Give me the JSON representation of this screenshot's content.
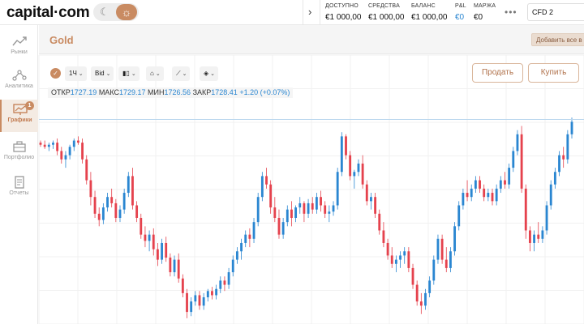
{
  "header": {
    "logo": "capital·com",
    "account": [
      {
        "label": "ДОСТУПНО",
        "value": "€1 000,00",
        "accent": false
      },
      {
        "label": "СРЕДСТВА",
        "value": "€1 000,00",
        "accent": false
      },
      {
        "label": "БАЛАНС",
        "value": "€1 000,00",
        "accent": false
      },
      {
        "label": "P&L",
        "value": "€0",
        "accent": true
      },
      {
        "label": "МАРЖА",
        "value": "€0",
        "accent": false
      }
    ],
    "account_type": "CFD 2"
  },
  "sidebar": {
    "items": [
      {
        "label": "Рынки",
        "icon": "trend-line-icon",
        "active": false
      },
      {
        "label": "Аналитика",
        "icon": "network-icon",
        "active": false
      },
      {
        "label": "Графики",
        "icon": "chart-monitor-icon",
        "active": true,
        "badge": "1"
      },
      {
        "label": "Портфолио",
        "icon": "briefcase-icon",
        "active": false
      },
      {
        "label": "Отчеты",
        "icon": "document-icon",
        "active": false
      }
    ]
  },
  "instrument": {
    "title": "Gold",
    "add_label": "Добавить все в избранное"
  },
  "toolbar": {
    "interval": "1Ч",
    "price_type": "Bid"
  },
  "trade": {
    "sell_label": "Продать",
    "buy_label": "Купить"
  },
  "ohlc": {
    "open_label": "ОТКР",
    "open": "1727.19",
    "high_label": "МАКС",
    "high": "1729.17",
    "low_label": "МИН",
    "low": "1726.56",
    "close_label": "ЗАКР",
    "close": "1728.41",
    "change": "+1.20 (+0.07%)"
  },
  "colors": {
    "accent": "#c98b62",
    "up": "#2a86d1",
    "down": "#e5424d"
  },
  "chart_data": {
    "type": "candlestick",
    "title": "",
    "xlabel": "",
    "ylabel": "",
    "grid": true,
    "ylim": [
      0,
      100
    ],
    "series": [
      {
        "values": [
          [
            86,
            87,
            84,
            85
          ],
          [
            85,
            87,
            83,
            84
          ],
          [
            84,
            86,
            82,
            85
          ],
          [
            85,
            87,
            83,
            86
          ],
          [
            86,
            88,
            80,
            82
          ],
          [
            82,
            84,
            76,
            78
          ],
          [
            78,
            82,
            74,
            80
          ],
          [
            80,
            85,
            78,
            84
          ],
          [
            84,
            88,
            82,
            87
          ],
          [
            87,
            89,
            85,
            86
          ],
          [
            86,
            88,
            76,
            78
          ],
          [
            78,
            80,
            66,
            68
          ],
          [
            68,
            72,
            56,
            60
          ],
          [
            60,
            63,
            50,
            52
          ],
          [
            52,
            55,
            46,
            49
          ],
          [
            49,
            57,
            47,
            55
          ],
          [
            55,
            62,
            53,
            60
          ],
          [
            60,
            64,
            55,
            57
          ],
          [
            57,
            59,
            48,
            50
          ],
          [
            50,
            56,
            48,
            54
          ],
          [
            54,
            64,
            52,
            62
          ],
          [
            62,
            72,
            60,
            70
          ],
          [
            70,
            74,
            54,
            56
          ],
          [
            56,
            58,
            48,
            50
          ],
          [
            50,
            52,
            40,
            42
          ],
          [
            42,
            46,
            36,
            39
          ],
          [
            39,
            44,
            34,
            42
          ],
          [
            42,
            45,
            32,
            35
          ],
          [
            35,
            38,
            27,
            30
          ],
          [
            30,
            40,
            28,
            38
          ],
          [
            38,
            41,
            29,
            31
          ],
          [
            31,
            33,
            22,
            24
          ],
          [
            24,
            32,
            22,
            30
          ],
          [
            30,
            33,
            19,
            21
          ],
          [
            21,
            23,
            12,
            14
          ],
          [
            14,
            16,
            2,
            5
          ],
          [
            5,
            12,
            3,
            10
          ],
          [
            10,
            15,
            8,
            13
          ],
          [
            13,
            15,
            6,
            8
          ],
          [
            8,
            14,
            6,
            12
          ],
          [
            12,
            16,
            10,
            15
          ],
          [
            15,
            17,
            11,
            13
          ],
          [
            13,
            18,
            11,
            16
          ],
          [
            16,
            22,
            14,
            20
          ],
          [
            20,
            22,
            15,
            18
          ],
          [
            18,
            26,
            16,
            24
          ],
          [
            24,
            32,
            22,
            30
          ],
          [
            30,
            36,
            28,
            34
          ],
          [
            34,
            40,
            30,
            38
          ],
          [
            38,
            44,
            36,
            42
          ],
          [
            42,
            45,
            36,
            40
          ],
          [
            40,
            50,
            38,
            48
          ],
          [
            48,
            62,
            46,
            60
          ],
          [
            60,
            72,
            58,
            70
          ],
          [
            70,
            74,
            64,
            66
          ],
          [
            66,
            68,
            52,
            55
          ],
          [
            55,
            60,
            48,
            50
          ],
          [
            50,
            54,
            40,
            42
          ],
          [
            42,
            50,
            40,
            48
          ],
          [
            48,
            56,
            46,
            54
          ],
          [
            54,
            58,
            46,
            50
          ],
          [
            50,
            56,
            48,
            55
          ],
          [
            55,
            60,
            52,
            57
          ],
          [
            57,
            58,
            48,
            52
          ],
          [
            52,
            59,
            50,
            57
          ],
          [
            57,
            60,
            52,
            54
          ],
          [
            54,
            62,
            52,
            60
          ],
          [
            60,
            63,
            53,
            56
          ],
          [
            56,
            58,
            50,
            52
          ],
          [
            52,
            56,
            48,
            53
          ],
          [
            53,
            58,
            51,
            56
          ],
          [
            56,
            74,
            54,
            72
          ],
          [
            72,
            91,
            70,
            89
          ],
          [
            89,
            90,
            78,
            80
          ],
          [
            80,
            82,
            68,
            70
          ],
          [
            70,
            73,
            64,
            72
          ],
          [
            72,
            78,
            70,
            76
          ],
          [
            76,
            80,
            64,
            66
          ],
          [
            66,
            68,
            56,
            58
          ],
          [
            58,
            62,
            54,
            60
          ],
          [
            60,
            62,
            50,
            52
          ],
          [
            52,
            54,
            42,
            44
          ],
          [
            44,
            48,
            36,
            38
          ],
          [
            38,
            40,
            30,
            32
          ],
          [
            32,
            36,
            26,
            28
          ],
          [
            28,
            32,
            24,
            30
          ],
          [
            30,
            34,
            26,
            32
          ],
          [
            32,
            36,
            28,
            34
          ],
          [
            34,
            36,
            24,
            26
          ],
          [
            26,
            28,
            16,
            18
          ],
          [
            18,
            20,
            8,
            10
          ],
          [
            10,
            14,
            4,
            8
          ],
          [
            8,
            16,
            6,
            14
          ],
          [
            14,
            22,
            12,
            20
          ],
          [
            20,
            32,
            18,
            30
          ],
          [
            30,
            42,
            28,
            40
          ],
          [
            40,
            42,
            28,
            30
          ],
          [
            30,
            36,
            24,
            26
          ],
          [
            26,
            36,
            24,
            34
          ],
          [
            34,
            48,
            32,
            46
          ],
          [
            46,
            58,
            44,
            56
          ],
          [
            56,
            64,
            54,
            62
          ],
          [
            62,
            68,
            58,
            60
          ],
          [
            60,
            66,
            58,
            64
          ],
          [
            64,
            70,
            62,
            68
          ],
          [
            68,
            70,
            62,
            64
          ],
          [
            64,
            66,
            58,
            60
          ],
          [
            60,
            64,
            58,
            62
          ],
          [
            62,
            64,
            56,
            58
          ],
          [
            58,
            66,
            56,
            64
          ],
          [
            64,
            70,
            62,
            68
          ],
          [
            68,
            72,
            64,
            66
          ],
          [
            66,
            76,
            64,
            74
          ],
          [
            74,
            84,
            72,
            82
          ],
          [
            82,
            92,
            80,
            90
          ],
          [
            90,
            94,
            62,
            64
          ],
          [
            64,
            66,
            40,
            44
          ],
          [
            44,
            46,
            34,
            38
          ],
          [
            38,
            44,
            34,
            42
          ],
          [
            42,
            48,
            38,
            40
          ],
          [
            40,
            46,
            38,
            44
          ],
          [
            44,
            58,
            42,
            56
          ],
          [
            56,
            68,
            54,
            66
          ],
          [
            66,
            74,
            64,
            72
          ],
          [
            72,
            82,
            70,
            80
          ],
          [
            80,
            84,
            74,
            78
          ],
          [
            78,
            92,
            76,
            90
          ],
          [
            90,
            98,
            88,
            96
          ]
        ]
      }
    ]
  }
}
